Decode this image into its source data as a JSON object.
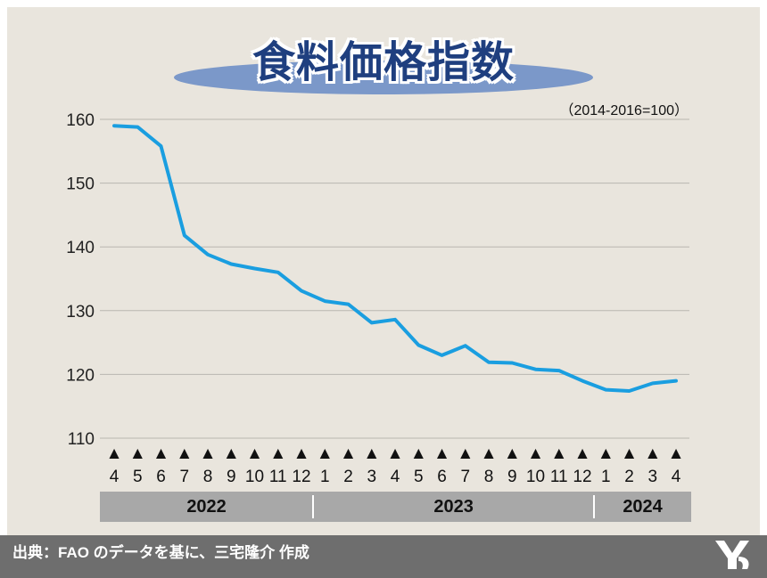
{
  "title": "食料価格指数",
  "unit_note": "（2014-2016=100）",
  "source": "出典：FAO のデータを基に、三宅隆介 作成",
  "colors": {
    "line": "#1a9ee0",
    "panel": "#e9e5dd",
    "title": "#1f3f7f",
    "ellipse": "#7b98c9",
    "footer": "#6e6e6e",
    "year_bar": "#a8a8a8"
  },
  "chart_data": {
    "type": "line",
    "title": "食料価格指数",
    "ylim": [
      110,
      160
    ],
    "yticks": [
      160,
      150,
      140,
      130,
      120,
      110
    ],
    "grid": true,
    "marker_glyph": "▲",
    "categories": [
      "4",
      "5",
      "6",
      "7",
      "8",
      "9",
      "10",
      "11",
      "12",
      "1",
      "2",
      "3",
      "4",
      "5",
      "6",
      "7",
      "8",
      "9",
      "10",
      "11",
      "12",
      "1",
      "2",
      "3",
      "4"
    ],
    "years": [
      {
        "label": "2022",
        "start": 0,
        "end": 8
      },
      {
        "label": "2023",
        "start": 9,
        "end": 20
      },
      {
        "label": "2024",
        "start": 21,
        "end": 24
      }
    ],
    "series": [
      {
        "values": [
          159.0,
          158.8,
          155.8,
          141.8,
          138.8,
          137.3,
          136.6,
          136.0,
          133.1,
          131.5,
          131.0,
          128.1,
          128.6,
          124.6,
          123.0,
          124.5,
          121.9,
          121.8,
          120.8,
          120.6,
          119.0,
          117.6,
          117.4,
          118.6,
          119.0
        ]
      }
    ]
  }
}
